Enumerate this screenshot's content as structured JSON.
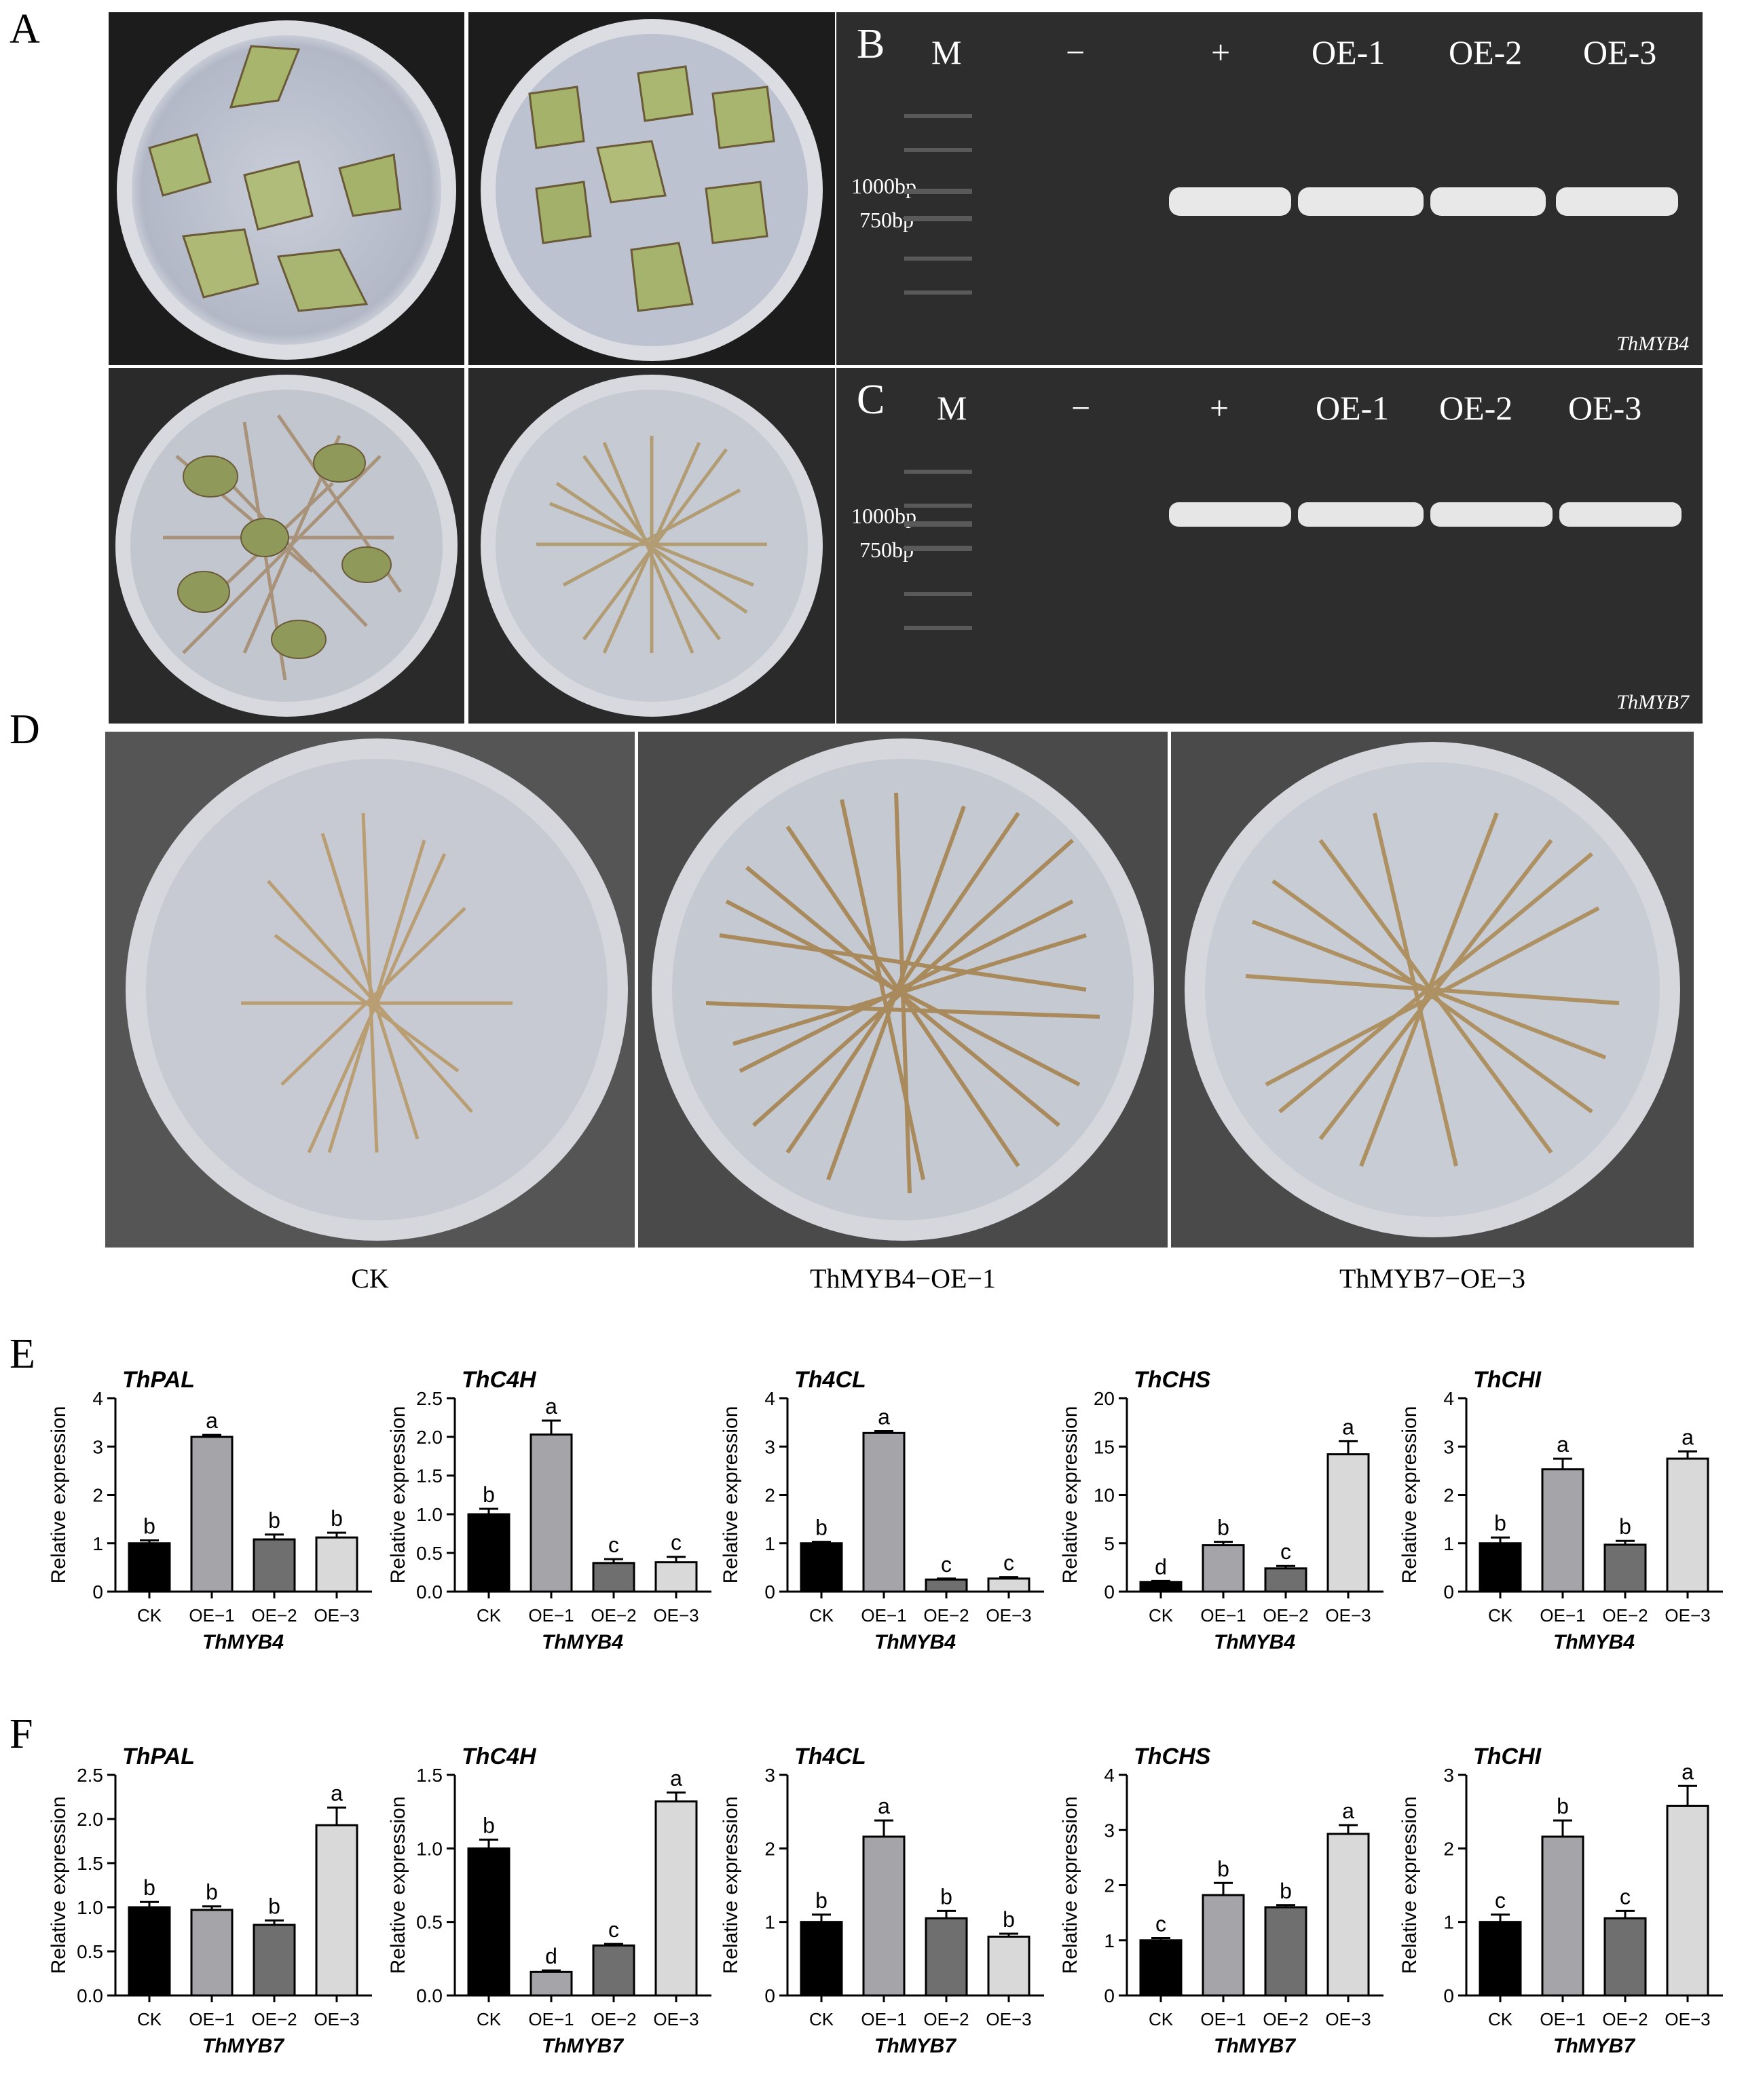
{
  "panel_letters": {
    "A": "A",
    "B": "B",
    "C": "C",
    "D": "D",
    "E": "E",
    "F": "F"
  },
  "gel_B": {
    "lanes": [
      "M",
      "−",
      "+",
      "OE-1",
      "OE-2",
      "OE-3"
    ],
    "markers": [
      "1000bp",
      "750bp"
    ],
    "gene": "ThMYB4"
  },
  "gel_C": {
    "lanes": [
      "M",
      "−",
      "+",
      "OE-1",
      "OE-2",
      "OE-3"
    ],
    "markers": [
      "1000bp",
      "750bp"
    ],
    "gene": "ThMYB7"
  },
  "panel_D_captions": [
    "CK",
    "ThMYB4−OE−1",
    "ThMYB7−OE−3"
  ],
  "colors": {
    "CK": "#000000",
    "OE-1": "#a4a4a9",
    "OE-2": "#6f6f6f",
    "OE-3": "#d9d9d9",
    "gel": "#2d2d2d"
  },
  "chart_data": [
    {
      "type": "bar",
      "panel": "E",
      "title": "ThPAL",
      "ylabel": "Relative expression",
      "xlabel": "ThMYB4",
      "categories": [
        "CK",
        "OE−1",
        "OE−2",
        "OE−3"
      ],
      "values": [
        1.0,
        3.2,
        1.08,
        1.12
      ],
      "errors": [
        0.06,
        0.04,
        0.1,
        0.1
      ],
      "letters": [
        "b",
        "a",
        "b",
        "b"
      ],
      "ylim": [
        0,
        4
      ],
      "ticks": [
        "0",
        "1",
        "2",
        "3",
        "4"
      ]
    },
    {
      "type": "bar",
      "panel": "E",
      "title": "ThC4H",
      "ylabel": "Relative expression",
      "xlabel": "ThMYB4",
      "categories": [
        "CK",
        "OE−1",
        "OE−2",
        "OE−3"
      ],
      "values": [
        1.0,
        2.03,
        0.37,
        0.38
      ],
      "errors": [
        0.07,
        0.18,
        0.05,
        0.07
      ],
      "letters": [
        "b",
        "a",
        "c",
        "c"
      ],
      "ylim": [
        0,
        2.5
      ],
      "ticks": [
        "0.0",
        "0.5",
        "1.0",
        "1.5",
        "2.0",
        "2.5"
      ]
    },
    {
      "type": "bar",
      "panel": "E",
      "title": "Th4CL",
      "ylabel": "Relative expression",
      "xlabel": "ThMYB4",
      "categories": [
        "CK",
        "OE−1",
        "OE−2",
        "OE−3"
      ],
      "values": [
        1.0,
        3.28,
        0.25,
        0.27
      ],
      "errors": [
        0.03,
        0.04,
        0.02,
        0.03
      ],
      "letters": [
        "b",
        "a",
        "c",
        "c"
      ],
      "ylim": [
        0,
        4
      ],
      "ticks": [
        "0",
        "1",
        "2",
        "3",
        "4"
      ]
    },
    {
      "type": "bar",
      "panel": "E",
      "title": "ThCHS",
      "ylabel": "Relative expression",
      "xlabel": "ThMYB4",
      "categories": [
        "CK",
        "OE−1",
        "OE−2",
        "OE−3"
      ],
      "values": [
        1.0,
        4.8,
        2.4,
        14.2
      ],
      "errors": [
        0.1,
        0.35,
        0.25,
        1.35
      ],
      "letters": [
        "d",
        "b",
        "c",
        "a"
      ],
      "ylim": [
        0,
        20
      ],
      "ticks": [
        "0",
        "5",
        "10",
        "15",
        "20"
      ]
    },
    {
      "type": "bar",
      "panel": "E",
      "title": "ThCHI",
      "ylabel": "Relative expression",
      "xlabel": "ThMYB4",
      "categories": [
        "CK",
        "OE−1",
        "OE−2",
        "OE−3"
      ],
      "values": [
        1.0,
        2.53,
        0.97,
        2.75
      ],
      "errors": [
        0.12,
        0.22,
        0.08,
        0.15
      ],
      "letters": [
        "b",
        "a",
        "b",
        "a"
      ],
      "ylim": [
        0,
        4
      ],
      "ticks": [
        "0",
        "1",
        "2",
        "3",
        "4"
      ]
    },
    {
      "type": "bar",
      "panel": "F",
      "title": "ThPAL",
      "ylabel": "Relative expression",
      "xlabel": "ThMYB7",
      "categories": [
        "CK",
        "OE−1",
        "OE−2",
        "OE−3"
      ],
      "values": [
        1.0,
        0.97,
        0.8,
        1.93
      ],
      "errors": [
        0.06,
        0.04,
        0.05,
        0.2
      ],
      "letters": [
        "b",
        "b",
        "b",
        "a"
      ],
      "ylim": [
        0,
        2.5
      ],
      "ticks": [
        "0.0",
        "0.5",
        "1.0",
        "1.5",
        "2.0",
        "2.5"
      ]
    },
    {
      "type": "bar",
      "panel": "F",
      "title": "ThC4H",
      "ylabel": "Relative expression",
      "xlabel": "ThMYB7",
      "categories": [
        "CK",
        "OE−1",
        "OE−2",
        "OE−3"
      ],
      "values": [
        1.0,
        0.16,
        0.34,
        1.32
      ],
      "errors": [
        0.06,
        0.01,
        0.01,
        0.06
      ],
      "letters": [
        "b",
        "d",
        "c",
        "a"
      ],
      "ylim": [
        0,
        1.5
      ],
      "ticks": [
        "0.0",
        "0.5",
        "1.0",
        "1.5"
      ]
    },
    {
      "type": "bar",
      "panel": "F",
      "title": "Th4CL",
      "ylabel": "Relative expression",
      "xlabel": "ThMYB7",
      "categories": [
        "CK",
        "OE−1",
        "OE−2",
        "OE−3"
      ],
      "values": [
        1.0,
        2.16,
        1.05,
        0.8
      ],
      "errors": [
        0.1,
        0.22,
        0.1,
        0.04
      ],
      "letters": [
        "b",
        "a",
        "b",
        "b"
      ],
      "ylim": [
        0,
        3
      ],
      "ticks": [
        "0",
        "1",
        "2",
        "3"
      ]
    },
    {
      "type": "bar",
      "panel": "F",
      "title": "ThCHS",
      "ylabel": "Relative expression",
      "xlabel": "ThMYB7",
      "categories": [
        "CK",
        "OE−1",
        "OE−2",
        "OE−3"
      ],
      "values": [
        1.0,
        1.82,
        1.6,
        2.93
      ],
      "errors": [
        0.04,
        0.22,
        0.04,
        0.16
      ],
      "letters": [
        "c",
        "b",
        "b",
        "a"
      ],
      "ylim": [
        0,
        4
      ],
      "ticks": [
        "0",
        "1",
        "2",
        "3",
        "4"
      ]
    },
    {
      "type": "bar",
      "panel": "F",
      "title": "ThCHI",
      "ylabel": "Relative expression",
      "xlabel": "ThMYB7",
      "categories": [
        "CK",
        "OE−1",
        "OE−2",
        "OE−3"
      ],
      "values": [
        1.0,
        2.16,
        1.05,
        2.58
      ],
      "errors": [
        0.1,
        0.22,
        0.1,
        0.27
      ],
      "letters": [
        "c",
        "b",
        "c",
        "a"
      ],
      "ylim": [
        0,
        3
      ],
      "ticks": [
        "0",
        "1",
        "2",
        "3"
      ]
    }
  ]
}
